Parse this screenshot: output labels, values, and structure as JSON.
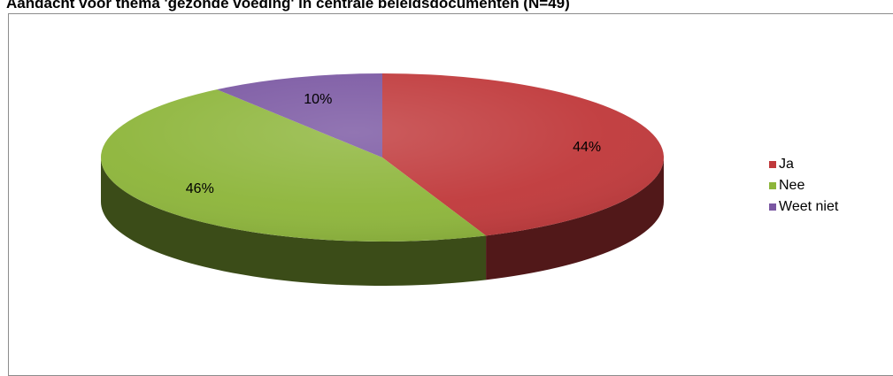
{
  "chart_data": {
    "type": "pie",
    "title": "Aandacht voor thema 'gezonde voeding' in centrale beleidsdocumenten (N=49)",
    "slices": [
      {
        "name": "Ja",
        "value": 44,
        "label": "44%",
        "color": "#c0393b"
      },
      {
        "name": "Nee",
        "value": 46,
        "label": "46%",
        "color": "#8db53a"
      },
      {
        "name": "Weet niet",
        "value": 10,
        "label": "10%",
        "color": "#7a57a2"
      }
    ],
    "legend_position": "right"
  }
}
